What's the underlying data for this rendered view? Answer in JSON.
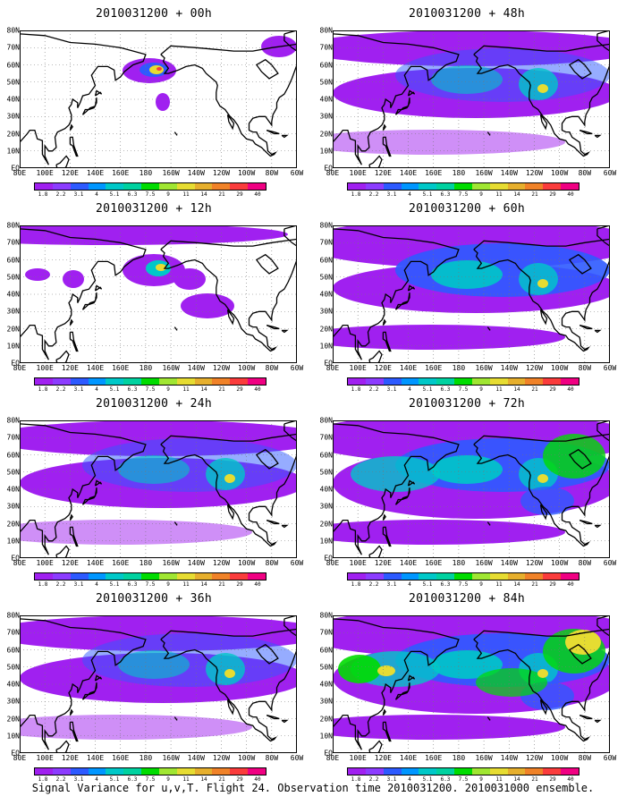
{
  "caption": "Signal Variance for u,v,T. Flight 24. Observation time 2010031200. 2010031000 ensemble.",
  "lat_labels": [
    "80N",
    "70N",
    "60N",
    "50N",
    "40N",
    "30N",
    "20N",
    "10N",
    "EQ"
  ],
  "lon_labels": [
    "80E",
    "100E",
    "120E",
    "140E",
    "160E",
    "180",
    "160W",
    "140W",
    "120W",
    "100W",
    "80W",
    "60W"
  ],
  "colorbar": {
    "labels": [
      "1.8",
      "2.2",
      "3.1",
      "4",
      "5.1",
      "6.3",
      "7.5",
      "9",
      "11",
      "14",
      "21",
      "29",
      "40"
    ],
    "colors": [
      "#a020f0",
      "#8c3cff",
      "#2d5aff",
      "#0096ff",
      "#00c8c8",
      "#00d2a0",
      "#00dc00",
      "#a0e632",
      "#e6dc32",
      "#e6af2d",
      "#f08228",
      "#fa3c3c",
      "#f00082"
    ]
  },
  "panels": [
    {
      "title": "2010031200 + 00h",
      "level": 0
    },
    {
      "title": "2010031200 + 48h",
      "level": 2
    },
    {
      "title": "2010031200 + 12h",
      "level": 1
    },
    {
      "title": "2010031200 + 60h",
      "level": 3
    },
    {
      "title": "2010031200 + 24h",
      "level": 2
    },
    {
      "title": "2010031200 + 72h",
      "level": 4
    },
    {
      "title": "2010031200 + 36h",
      "level": 2
    },
    {
      "title": "2010031200 + 84h",
      "level": 5
    }
  ]
}
